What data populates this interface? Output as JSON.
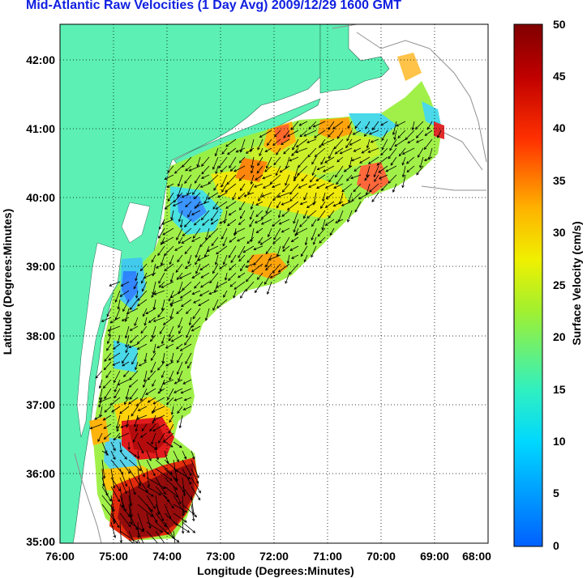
{
  "title": "Mid-Atlantic Raw Velocities (1 Day Avg) 2009/12/29 1600 GMT",
  "map": {
    "xlabel": "Longitude (Degrees:Minutes)",
    "ylabel": "Latitude (Degrees:Minutes)",
    "xticks": [
      "76:00",
      "75:00",
      "74:00",
      "73:00",
      "72:00",
      "71:00",
      "70:00",
      "69:00",
      "68:00"
    ],
    "yticks": [
      "42:00",
      "41:00",
      "40:00",
      "39:00",
      "38:00",
      "37:00",
      "36:00",
      "35:00"
    ],
    "lon_range": [
      -76,
      -68
    ],
    "lat_range": [
      35,
      42.5
    ],
    "land_color": "#5cf0b4",
    "grid": "dotted"
  },
  "colorbar": {
    "label": "Surface Velocity (cm/s)",
    "ticks": [
      "0",
      "5",
      "10",
      "15",
      "20",
      "25",
      "30",
      "35",
      "40",
      "45",
      "50"
    ],
    "min": 0,
    "max": 50
  },
  "colors": {
    "title": "#1020e0"
  }
}
